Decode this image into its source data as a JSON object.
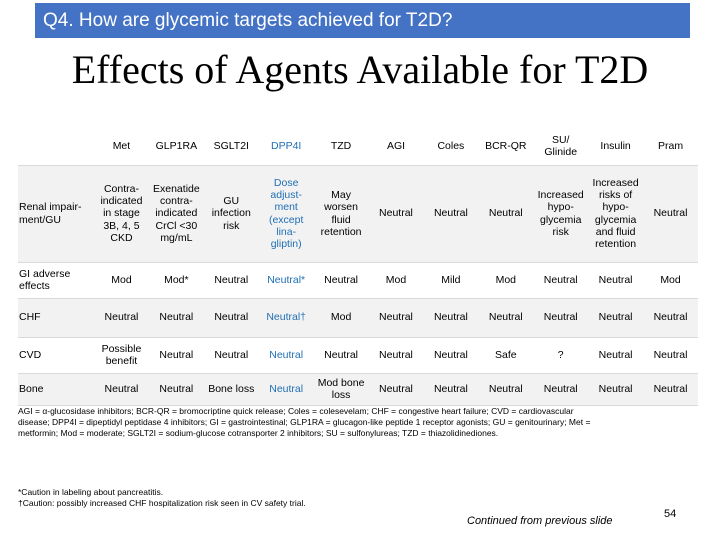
{
  "header": {
    "title": "Q4. How are glycemic targets achieved for T2D?"
  },
  "title": "Effects of Agents Available for T2D",
  "table": {
    "columns": [
      "Met",
      "GLP1RA",
      "SGLT2I",
      "DPP4I",
      "TZD",
      "AGI",
      "Coles",
      "BCR-QR",
      "SU/\nGlinide",
      "Insulin",
      "Pram"
    ],
    "rows": [
      {
        "label": "Renal impair-\nment/GU",
        "cells": [
          "Contra-\nindicated\nin stage\n3B, 4, 5\nCKD",
          "Exenatide\ncontra-\nindicated\nCrCl <30\nmg/mL",
          "GU\ninfection\nrisk",
          "Dose\nadjust-\nment\n(except\nlina-\ngliptin)",
          "May\nworsen\nfluid\nretention",
          "Neutral",
          "Neutral",
          "Neutral",
          "Increased\nhypo-\nglycemia\nrisk",
          "Increased\nrisks of\nhypo-\nglycemia\nand fluid\nretention",
          "Neutral"
        ]
      },
      {
        "label": "GI adverse\neffects",
        "cells": [
          "Mod",
          "Mod*",
          "Neutral",
          "Neutral*",
          "Neutral",
          "Mod",
          "Mild",
          "Mod",
          "Neutral",
          "Neutral",
          "Mod"
        ]
      },
      {
        "label": "CHF",
        "cells": [
          "Neutral",
          "Neutral",
          "Neutral",
          "Neutral†",
          "Mod",
          "Neutral",
          "Neutral",
          "Neutral",
          "Neutral",
          "Neutral",
          "Neutral"
        ]
      },
      {
        "label": "CVD",
        "cells": [
          "Possible\nbenefit",
          "Neutral",
          "Neutral",
          "Neutral",
          "Neutral",
          "Neutral",
          "Neutral",
          "Safe",
          "?",
          "Neutral",
          "Neutral"
        ]
      },
      {
        "label": "Bone",
        "cells": [
          "Neutral",
          "Neutral",
          "Bone loss",
          "Neutral",
          "Mod bone\nloss",
          "Neutral",
          "Neutral",
          "Neutral",
          "Neutral",
          "Neutral",
          "Neutral"
        ]
      }
    ]
  },
  "abbreviations": "AGI = α-glucosidase inhibitors; BCR-QR = bromocriptine quick release; Coles = colesevelam; CHF = congestive heart failure; CVD = cardiovascular disease; DPP4I = dipeptidyl peptidase 4 inhibitors; GI = gastrointestinal; GLP1RA = glucagon-like peptide 1 receptor agonists; GU = genitourinary; Met = metformin; Mod = moderate; SGLT2I = sodium-glucose cotransporter 2 inhibitors; SU = sulfonylureas; TZD = thiazolidinediones.",
  "footnotes": [
    "*Caution in labeling about pancreatitis.",
    "†Caution: possibly increased CHF hospitalization risk seen in CV safety trial."
  ],
  "continued": "Continued from previous slide",
  "page_number": "54"
}
